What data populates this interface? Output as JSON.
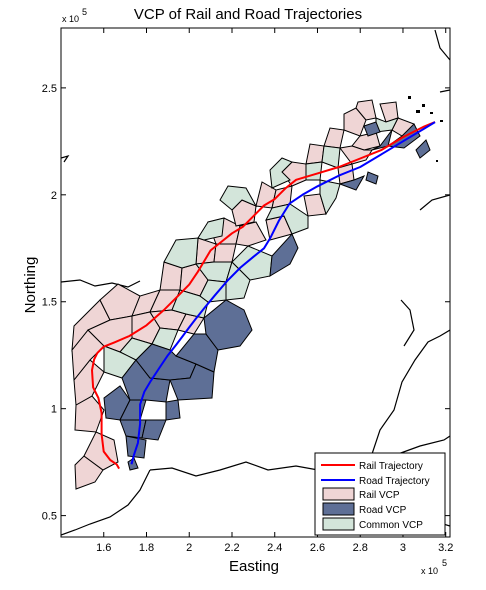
{
  "chart_data": {
    "type": "map",
    "title": "VCP of Rail and Road Trajectories",
    "xlabel": "Easting",
    "ylabel": "Northing",
    "x_exponent_label": "x 10",
    "x_exponent_sup": "5",
    "y_exponent_label": "x 10",
    "y_exponent_sup": "5",
    "xlim": [
      1.4,
      3.22
    ],
    "ylim": [
      0.4,
      2.78
    ],
    "x_ticks": [
      1.6,
      1.8,
      2,
      2.2,
      2.4,
      2.6,
      2.8,
      3,
      3.2
    ],
    "x_tick_labels": [
      "1.6",
      "1.8",
      "2",
      "2.2",
      "2.4",
      "2.6",
      "2.8",
      "3",
      "3.2"
    ],
    "y_ticks": [
      0.5,
      1,
      1.5,
      2,
      2.5
    ],
    "y_tick_labels": [
      "0.5",
      "1",
      "1.5",
      "2",
      "2.5"
    ],
    "grid": false,
    "legend_position": "bottom-right",
    "legend": [
      {
        "label": "Rail Trajectory",
        "kind": "line",
        "color": "#ff0000"
      },
      {
        "label": "Road Trajectory",
        "kind": "line",
        "color": "#0000ff"
      },
      {
        "label": "Rail VCP",
        "kind": "patch",
        "color": "#efd5d5"
      },
      {
        "label": "Road VCP",
        "kind": "patch",
        "color": "#5e6f96"
      },
      {
        "label": "Common VCP",
        "kind": "patch",
        "color": "#d3e5da"
      }
    ],
    "series": [
      {
        "name": "Rail Trajectory",
        "color": "#ff0000",
        "x": [
          1.672,
          1.66,
          1.63,
          1.6,
          1.59,
          1.59,
          1.575,
          1.55,
          1.545,
          1.555,
          1.57,
          1.6,
          1.65,
          1.72,
          1.8,
          1.88,
          1.95,
          2.0,
          2.04,
          2.07,
          2.1,
          2.15,
          2.2,
          2.25,
          2.3,
          2.35,
          2.4,
          2.45,
          2.5,
          2.6,
          2.7,
          2.8,
          2.9,
          3.0,
          3.1,
          3.15
        ],
        "y": [
          0.72,
          0.74,
          0.76,
          0.8,
          0.88,
          0.98,
          1.05,
          1.1,
          1.18,
          1.23,
          1.26,
          1.29,
          1.31,
          1.34,
          1.39,
          1.46,
          1.53,
          1.58,
          1.64,
          1.69,
          1.74,
          1.78,
          1.82,
          1.85,
          1.9,
          1.95,
          1.98,
          2.03,
          2.07,
          2.1,
          2.13,
          2.17,
          2.21,
          2.27,
          2.32,
          2.34
        ]
      },
      {
        "name": "Road Trajectory",
        "color": "#0000ff",
        "x": [
          1.73,
          1.74,
          1.76,
          1.77,
          1.77,
          1.79,
          1.82,
          1.86,
          1.9,
          1.94,
          1.97,
          2.0,
          2.03,
          2.07,
          2.12,
          2.18,
          2.24,
          2.3,
          2.35,
          2.38,
          2.42,
          2.47,
          2.53,
          2.6,
          2.7,
          2.8,
          2.9,
          3.0,
          3.1,
          3.15
        ],
        "y": [
          0.74,
          0.78,
          0.84,
          0.93,
          1.02,
          1.08,
          1.13,
          1.19,
          1.25,
          1.3,
          1.34,
          1.38,
          1.42,
          1.47,
          1.53,
          1.6,
          1.66,
          1.71,
          1.75,
          1.8,
          1.88,
          1.96,
          2.0,
          2.04,
          2.09,
          2.13,
          2.19,
          2.25,
          2.31,
          2.34
        ]
      }
    ]
  }
}
